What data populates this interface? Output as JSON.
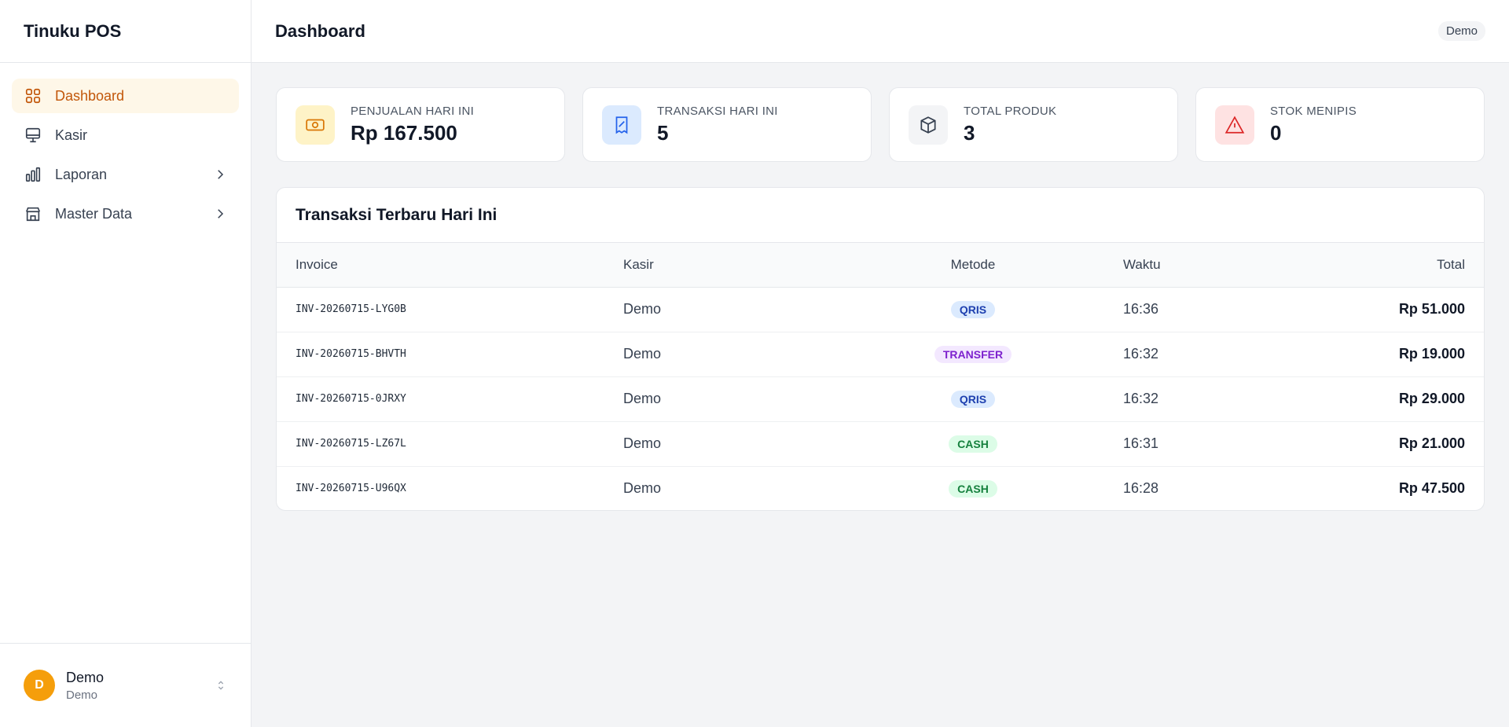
{
  "app": {
    "name": "Tinuku POS"
  },
  "nav": {
    "items": [
      {
        "label": "Dashboard",
        "icon": "grid-icon",
        "active": true
      },
      {
        "label": "Kasir",
        "icon": "monitor-icon"
      },
      {
        "label": "Laporan",
        "icon": "bar-chart-icon",
        "has_children": true
      },
      {
        "label": "Master Data",
        "icon": "store-icon",
        "has_children": true
      }
    ]
  },
  "user": {
    "initial": "D",
    "name": "Demo",
    "role": "Demo",
    "chip": "Demo"
  },
  "header": {
    "title": "Dashboard"
  },
  "stats": [
    {
      "label": "PENJUALAN HARI INI",
      "value": "Rp 167.500",
      "icon": "cash-icon",
      "bg": "#fef3c7",
      "color": "#d97706"
    },
    {
      "label": "TRANSAKSI HARI INI",
      "value": "5",
      "icon": "receipt-icon",
      "bg": "#dbeafe",
      "color": "#2563eb"
    },
    {
      "label": "TOTAL PRODUK",
      "value": "3",
      "icon": "box-icon",
      "bg": "#f3f4f6",
      "color": "#374151"
    },
    {
      "label": "STOK MENIPIS",
      "value": "0",
      "icon": "warning-icon",
      "bg": "#fee2e2",
      "color": "#dc2626"
    }
  ],
  "transactions": {
    "title": "Transaksi Terbaru Hari Ini",
    "columns": {
      "invoice": "Invoice",
      "kasir": "Kasir",
      "metode": "Metode",
      "waktu": "Waktu",
      "total": "Total"
    },
    "rows": [
      {
        "invoice": "INV-20260715-LYG0B",
        "kasir": "Demo",
        "metode": "QRIS",
        "waktu": "16:36",
        "total": "Rp 51.000"
      },
      {
        "invoice": "INV-20260715-BHVTH",
        "kasir": "Demo",
        "metode": "TRANSFER",
        "waktu": "16:32",
        "total": "Rp 19.000"
      },
      {
        "invoice": "INV-20260715-0JRXY",
        "kasir": "Demo",
        "metode": "QRIS",
        "waktu": "16:32",
        "total": "Rp 29.000"
      },
      {
        "invoice": "INV-20260715-LZ67L",
        "kasir": "Demo",
        "metode": "CASH",
        "waktu": "16:31",
        "total": "Rp 21.000"
      },
      {
        "invoice": "INV-20260715-U96QX",
        "kasir": "Demo",
        "metode": "CASH",
        "waktu": "16:28",
        "total": "Rp 47.500"
      }
    ]
  }
}
